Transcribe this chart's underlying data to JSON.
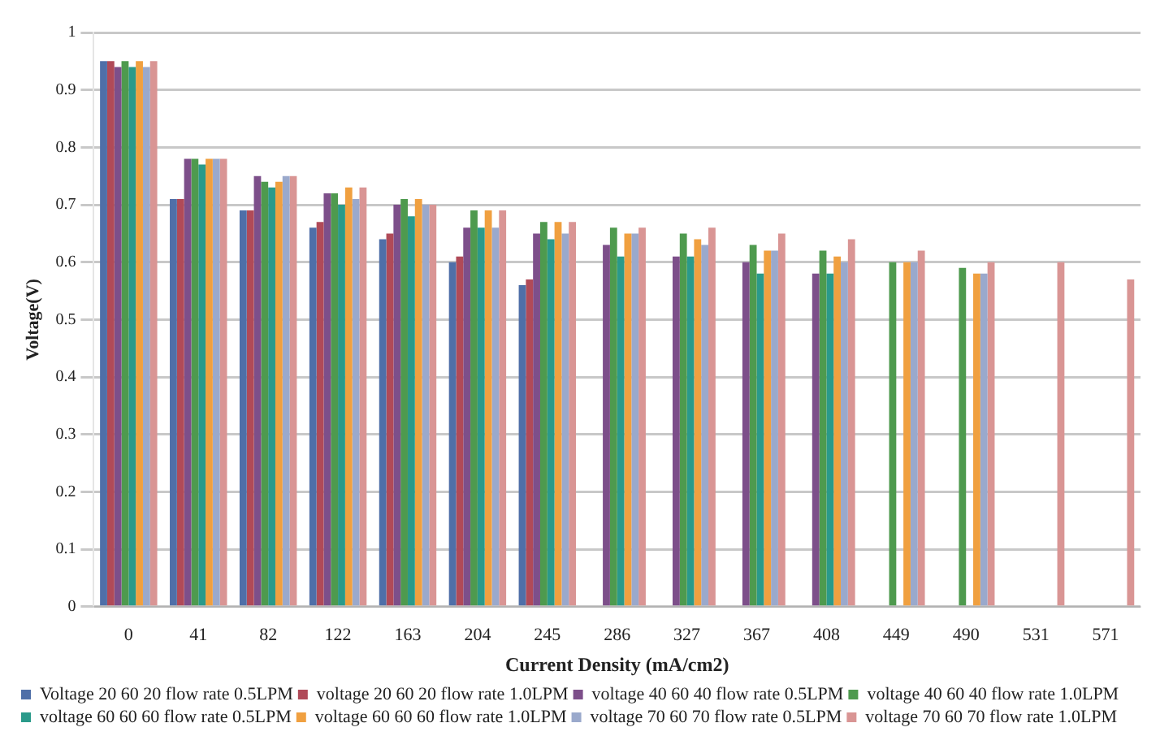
{
  "chart_data": {
    "type": "bar",
    "xlabel": "Current Density (mA/cm2)",
    "ylabel": "Voltage(V)",
    "categories": [
      "0",
      "41",
      "82",
      "122",
      "163",
      "204",
      "245",
      "286",
      "327",
      "367",
      "408",
      "449",
      "490",
      "531",
      "571"
    ],
    "series": [
      {
        "name": "Voltage 20 60 20 flow rate 0.5LPM",
        "color": "#4f6fa8",
        "values": [
          0.95,
          0.71,
          0.69,
          0.66,
          0.64,
          0.6,
          0.56,
          null,
          null,
          null,
          null,
          null,
          null,
          null,
          null
        ]
      },
      {
        "name": "voltage 20 60 20 flow rate 1.0LPM",
        "color": "#b04a58",
        "values": [
          0.95,
          0.71,
          0.69,
          0.67,
          0.65,
          0.61,
          0.57,
          null,
          null,
          null,
          null,
          null,
          null,
          null,
          null
        ]
      },
      {
        "name": "voltage 40 60 40 flow rate 0.5LPM",
        "color": "#7d4f8a",
        "values": [
          0.94,
          0.78,
          0.75,
          0.72,
          0.7,
          0.66,
          0.65,
          0.63,
          0.61,
          0.6,
          0.58,
          null,
          null,
          null,
          null
        ]
      },
      {
        "name": "voltage 40 60 40 flow rate 1.0LPM",
        "color": "#4e9a4e",
        "values": [
          0.95,
          0.78,
          0.74,
          0.72,
          0.71,
          0.69,
          0.67,
          0.66,
          0.65,
          0.63,
          0.62,
          0.6,
          0.59,
          null,
          null
        ]
      },
      {
        "name": "voltage 60 60 60 flow rate 0.5LPM",
        "color": "#2a9a8a",
        "values": [
          0.94,
          0.77,
          0.73,
          0.7,
          0.68,
          0.66,
          0.64,
          0.61,
          0.61,
          0.58,
          0.58,
          null,
          null,
          null,
          null
        ]
      },
      {
        "name": "voltage 60 60 60 flow rate 1.0LPM",
        "color": "#f0a040",
        "values": [
          0.95,
          0.78,
          0.74,
          0.73,
          0.71,
          0.69,
          0.67,
          0.65,
          0.64,
          0.62,
          0.61,
          0.6,
          0.58,
          null,
          null
        ]
      },
      {
        "name": "voltage 70 60 70 flow rate 0.5LPM",
        "color": "#9aa9cc",
        "values": [
          0.94,
          0.78,
          0.75,
          0.71,
          0.7,
          0.66,
          0.65,
          0.65,
          0.63,
          0.62,
          0.6,
          0.6,
          0.58,
          null,
          null
        ]
      },
      {
        "name": "voltage 70 60 70 flow rate 1.0LPM",
        "color": "#d99594",
        "values": [
          0.95,
          0.78,
          0.75,
          0.73,
          0.7,
          0.69,
          0.67,
          0.66,
          0.66,
          0.65,
          0.64,
          0.62,
          0.6,
          0.6,
          0.57
        ]
      }
    ],
    "ylim": [
      0,
      1
    ],
    "yticks": [
      0,
      0.1,
      0.2,
      0.3,
      0.4,
      0.5,
      0.6,
      0.7,
      0.8,
      0.9,
      1
    ],
    "grid": "y",
    "legend": "bottom"
  }
}
